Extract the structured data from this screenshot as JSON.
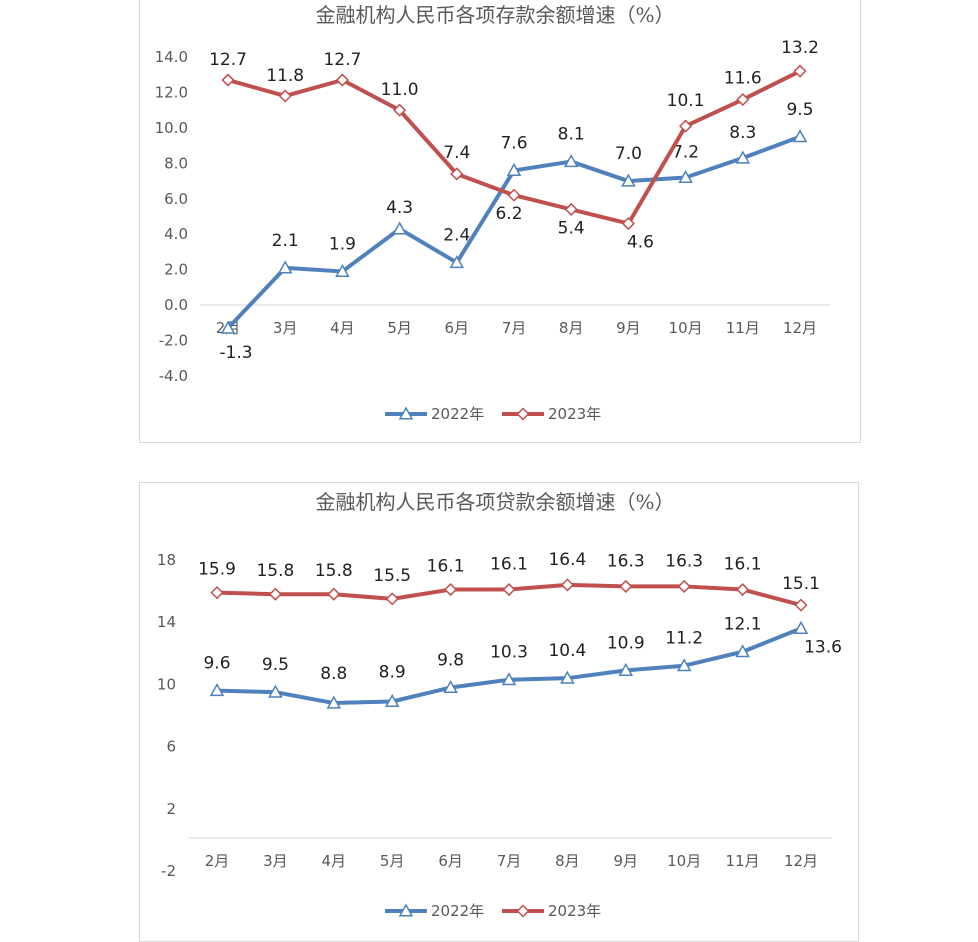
{
  "chart_data": [
    {
      "type": "line",
      "title": "金融机构人民币各项存款余额增速（%）",
      "categories": [
        "2月",
        "3月",
        "4月",
        "5月",
        "6月",
        "7月",
        "8月",
        "9月",
        "10月",
        "11月",
        "12月"
      ],
      "yticks": [
        "14.0",
        "12.0",
        "10.0",
        "8.0",
        "6.0",
        "4.0",
        "2.0",
        "0.0",
        "-2.0",
        "-4.0"
      ],
      "ylim": [
        -4,
        14
      ],
      "grid": false,
      "legend_position": "bottom",
      "series": [
        {
          "name": "2022年",
          "color": "#4f81bd",
          "marker": "triangle",
          "values": [
            -1.3,
            2.1,
            1.9,
            4.3,
            2.4,
            7.6,
            8.1,
            7.0,
            7.2,
            8.3,
            9.5
          ],
          "labels": [
            "-1.3",
            "2.1",
            "1.9",
            "4.3",
            "2.4",
            "7.6",
            "8.1",
            "7.0",
            "7.2",
            "8.3",
            "9.5"
          ]
        },
        {
          "name": "2023年",
          "color": "#c0504d",
          "marker": "diamond",
          "values": [
            12.7,
            11.8,
            12.7,
            11.0,
            7.4,
            6.2,
            5.4,
            4.6,
            10.1,
            11.6,
            13.2
          ],
          "labels": [
            "12.7",
            "11.8",
            "12.7",
            "11.0",
            "7.4",
            "6.2",
            "5.4",
            "4.6",
            "10.1",
            "11.6",
            "13.2"
          ]
        }
      ]
    },
    {
      "type": "line",
      "title": "金融机构人民币各项贷款余额增速（%）",
      "categories": [
        "2月",
        "3月",
        "4月",
        "5月",
        "6月",
        "7月",
        "8月",
        "9月",
        "10月",
        "11月",
        "12月"
      ],
      "yticks": [
        "18",
        "14",
        "10",
        "6",
        "2",
        "-2"
      ],
      "ylim": [
        -2,
        18
      ],
      "grid": false,
      "legend_position": "bottom",
      "series": [
        {
          "name": "2022年",
          "color": "#4f81bd",
          "marker": "triangle",
          "values": [
            9.6,
            9.5,
            8.8,
            8.9,
            9.8,
            10.3,
            10.4,
            10.9,
            11.2,
            12.1,
            13.6
          ],
          "labels": [
            "9.6",
            "9.5",
            "8.8",
            "8.9",
            "9.8",
            "10.3",
            "10.4",
            "10.9",
            "11.2",
            "12.1",
            "13.6"
          ]
        },
        {
          "name": "2023年",
          "color": "#c0504d",
          "marker": "diamond",
          "values": [
            15.9,
            15.8,
            15.8,
            15.5,
            16.1,
            16.1,
            16.4,
            16.3,
            16.3,
            16.1,
            15.1
          ],
          "labels": [
            "15.9",
            "15.8",
            "15.8",
            "15.5",
            "16.1",
            "16.1",
            "16.4",
            "16.3",
            "16.3",
            "16.1",
            "15.1"
          ]
        }
      ]
    }
  ]
}
